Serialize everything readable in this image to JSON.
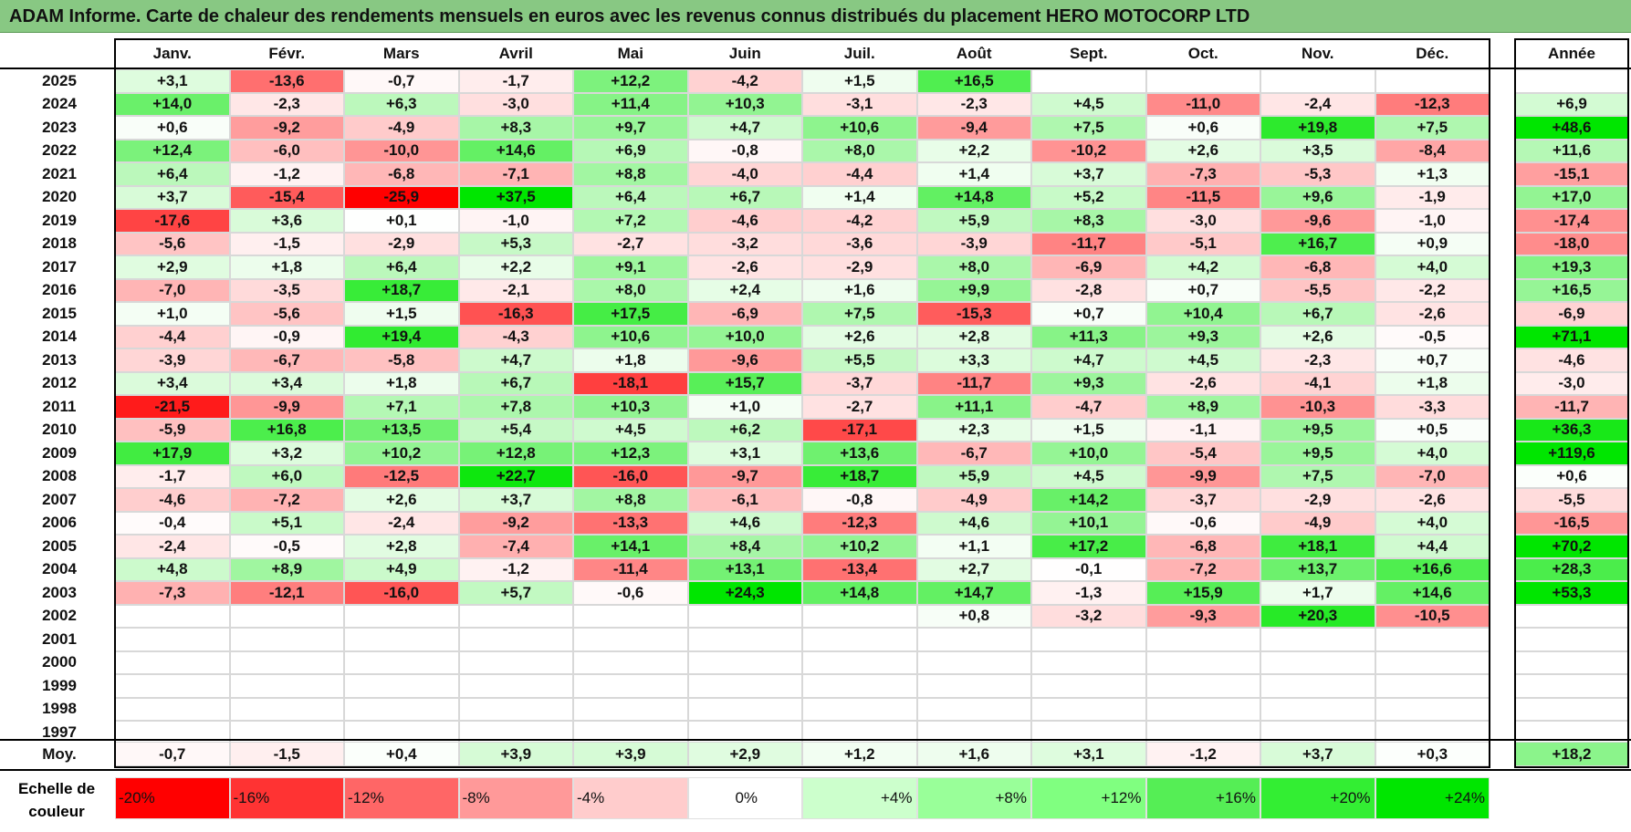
{
  "title": "ADAM Informe. Carte de chaleur des rendements mensuels en euros avec les revenus connus distribués du placement HERO MOTOCORP LTD",
  "chart_data": {
    "type": "heatmap",
    "title": "ADAM Informe. Carte de chaleur des rendements mensuels en euros avec les revenus connus distribués du placement HERO MOTOCORP LTD",
    "months": [
      "Janv.",
      "Févr.",
      "Mars",
      "Avril",
      "Mai",
      "Juin",
      "Juil.",
      "Août",
      "Sept.",
      "Oct.",
      "Nov.",
      "Déc."
    ],
    "year_header": "Année",
    "rows": [
      {
        "year": "2025",
        "values": [
          "+3,1",
          "-13,6",
          "-0,7",
          "-1,7",
          "+12,2",
          "-4,2",
          "+1,5",
          "+16,5",
          "",
          "",
          "",
          ""
        ],
        "annual": ""
      },
      {
        "year": "2024",
        "values": [
          "+14,0",
          "-2,3",
          "+6,3",
          "-3,0",
          "+11,4",
          "+10,3",
          "-3,1",
          "-2,3",
          "+4,5",
          "-11,0",
          "-2,4",
          "-12,3"
        ],
        "annual": "+6,9"
      },
      {
        "year": "2023",
        "values": [
          "+0,6",
          "-9,2",
          "-4,9",
          "+8,3",
          "+9,7",
          "+4,7",
          "+10,6",
          "-9,4",
          "+7,5",
          "+0,6",
          "+19,8",
          "+7,5"
        ],
        "annual": "+48,6"
      },
      {
        "year": "2022",
        "values": [
          "+12,4",
          "-6,0",
          "-10,0",
          "+14,6",
          "+6,9",
          "-0,8",
          "+8,0",
          "+2,2",
          "-10,2",
          "+2,6",
          "+3,5",
          "-8,4"
        ],
        "annual": "+11,6"
      },
      {
        "year": "2021",
        "values": [
          "+6,4",
          "-1,2",
          "-6,8",
          "-7,1",
          "+8,8",
          "-4,0",
          "-4,4",
          "+1,4",
          "+3,7",
          "-7,3",
          "-5,3",
          "+1,3"
        ],
        "annual": "-15,1"
      },
      {
        "year": "2020",
        "values": [
          "+3,7",
          "-15,4",
          "-25,9",
          "+37,5",
          "+6,4",
          "+6,7",
          "+1,4",
          "+14,8",
          "+5,2",
          "-11,5",
          "+9,6",
          "-1,9"
        ],
        "annual": "+17,0"
      },
      {
        "year": "2019",
        "values": [
          "-17,6",
          "+3,6",
          "+0,1",
          "-1,0",
          "+7,2",
          "-4,6",
          "-4,2",
          "+5,9",
          "+8,3",
          "-3,0",
          "-9,6",
          "-1,0"
        ],
        "annual": "-17,4"
      },
      {
        "year": "2018",
        "values": [
          "-5,6",
          "-1,5",
          "-2,9",
          "+5,3",
          "-2,7",
          "-3,2",
          "-3,6",
          "-3,9",
          "-11,7",
          "-5,1",
          "+16,7",
          "+0,9"
        ],
        "annual": "-18,0"
      },
      {
        "year": "2017",
        "values": [
          "+2,9",
          "+1,8",
          "+6,4",
          "+2,2",
          "+9,1",
          "-2,6",
          "-2,9",
          "+8,0",
          "-6,9",
          "+4,2",
          "-6,8",
          "+4,0"
        ],
        "annual": "+19,3"
      },
      {
        "year": "2016",
        "values": [
          "-7,0",
          "-3,5",
          "+18,7",
          "-2,1",
          "+8,0",
          "+2,4",
          "+1,6",
          "+9,9",
          "-2,8",
          "+0,7",
          "-5,5",
          "-2,2"
        ],
        "annual": "+16,5"
      },
      {
        "year": "2015",
        "values": [
          "+1,0",
          "-5,6",
          "+1,5",
          "-16,3",
          "+17,5",
          "-6,9",
          "+7,5",
          "-15,3",
          "+0,7",
          "+10,4",
          "+6,7",
          "-2,6"
        ],
        "annual": "-6,9"
      },
      {
        "year": "2014",
        "values": [
          "-4,4",
          "-0,9",
          "+19,4",
          "-4,3",
          "+10,6",
          "+10,0",
          "+2,6",
          "+2,8",
          "+11,3",
          "+9,3",
          "+2,6",
          "-0,5"
        ],
        "annual": "+71,1"
      },
      {
        "year": "2013",
        "values": [
          "-3,9",
          "-6,7",
          "-5,8",
          "+4,7",
          "+1,8",
          "-9,6",
          "+5,5",
          "+3,3",
          "+4,7",
          "+4,5",
          "-2,3",
          "+0,7"
        ],
        "annual": "-4,6"
      },
      {
        "year": "2012",
        "values": [
          "+3,4",
          "+3,4",
          "+1,8",
          "+6,7",
          "-18,1",
          "+15,7",
          "-3,7",
          "-11,7",
          "+9,3",
          "-2,6",
          "-4,1",
          "+1,8"
        ],
        "annual": "-3,0"
      },
      {
        "year": "2011",
        "values": [
          "-21,5",
          "-9,9",
          "+7,1",
          "+7,8",
          "+10,3",
          "+1,0",
          "-2,7",
          "+11,1",
          "-4,7",
          "+8,9",
          "-10,3",
          "-3,3"
        ],
        "annual": "-11,7"
      },
      {
        "year": "2010",
        "values": [
          "-5,9",
          "+16,8",
          "+13,5",
          "+5,4",
          "+4,5",
          "+6,2",
          "-17,1",
          "+2,3",
          "+1,5",
          "-1,1",
          "+9,5",
          "+0,5"
        ],
        "annual": "+36,3"
      },
      {
        "year": "2009",
        "values": [
          "+17,9",
          "+3,2",
          "+10,2",
          "+12,8",
          "+12,3",
          "+3,1",
          "+13,6",
          "-6,7",
          "+10,0",
          "-5,4",
          "+9,5",
          "+4,0"
        ],
        "annual": "+119,6"
      },
      {
        "year": "2008",
        "values": [
          "-1,7",
          "+6,0",
          "-12,5",
          "+22,7",
          "-16,0",
          "-9,7",
          "+18,7",
          "+5,9",
          "+4,5",
          "-9,9",
          "+7,5",
          "-7,0"
        ],
        "annual": "+0,6"
      },
      {
        "year": "2007",
        "values": [
          "-4,6",
          "-7,2",
          "+2,6",
          "+3,7",
          "+8,8",
          "-6,1",
          "-0,8",
          "-4,9",
          "+14,2",
          "-3,7",
          "-2,9",
          "-2,6"
        ],
        "annual": "-5,5"
      },
      {
        "year": "2006",
        "values": [
          "-0,4",
          "+5,1",
          "-2,4",
          "-9,2",
          "-13,3",
          "+4,6",
          "-12,3",
          "+4,6",
          "+10,1",
          "-0,6",
          "-4,9",
          "+4,0"
        ],
        "annual": "-16,5"
      },
      {
        "year": "2005",
        "values": [
          "-2,4",
          "-0,5",
          "+2,8",
          "-7,4",
          "+14,1",
          "+8,4",
          "+10,2",
          "+1,1",
          "+17,2",
          "-6,8",
          "+18,1",
          "+4,4"
        ],
        "annual": "+70,2"
      },
      {
        "year": "2004",
        "values": [
          "+4,8",
          "+8,9",
          "+4,9",
          "-1,2",
          "-11,4",
          "+13,1",
          "-13,4",
          "+2,7",
          "-0,1",
          "-7,2",
          "+13,7",
          "+16,6"
        ],
        "annual": "+28,3"
      },
      {
        "year": "2003",
        "values": [
          "-7,3",
          "-12,1",
          "-16,0",
          "+5,7",
          "-0,6",
          "+24,3",
          "+14,8",
          "+14,7",
          "-1,3",
          "+15,9",
          "+1,7",
          "+14,6"
        ],
        "annual": "+53,3"
      },
      {
        "year": "2002",
        "values": [
          "",
          "",
          "",
          "",
          "",
          "",
          "",
          "+0,8",
          "-3,2",
          "-9,3",
          "+20,3",
          "-10,5"
        ],
        "annual": ""
      },
      {
        "year": "2001",
        "values": [
          "",
          "",
          "",
          "",
          "",
          "",
          "",
          "",
          "",
          "",
          "",
          ""
        ],
        "annual": ""
      },
      {
        "year": "2000",
        "values": [
          "",
          "",
          "",
          "",
          "",
          "",
          "",
          "",
          "",
          "",
          "",
          ""
        ],
        "annual": ""
      },
      {
        "year": "1999",
        "values": [
          "",
          "",
          "",
          "",
          "",
          "",
          "",
          "",
          "",
          "",
          "",
          ""
        ],
        "annual": ""
      },
      {
        "year": "1998",
        "values": [
          "",
          "",
          "",
          "",
          "",
          "",
          "",
          "",
          "",
          "",
          "",
          ""
        ],
        "annual": ""
      },
      {
        "year": "1997",
        "values": [
          "",
          "",
          "",
          "",
          "",
          "",
          "",
          "",
          "",
          "",
          "",
          ""
        ],
        "annual": ""
      }
    ],
    "average": {
      "label": "Moy.",
      "values": [
        "-0,7",
        "-1,5",
        "+0,4",
        "+3,9",
        "+3,9",
        "+2,9",
        "+1,2",
        "+1,6",
        "+3,1",
        "-1,2",
        "+3,7",
        "+0,3"
      ],
      "annual": "+18,2"
    },
    "color_scale": {
      "label": "Echelle de couleur",
      "steps": [
        {
          "label": "-20%",
          "value": -20,
          "color": "#ff0000"
        },
        {
          "label": "-16%",
          "value": -16,
          "color": "#ff3333"
        },
        {
          "label": "-12%",
          "value": -12,
          "color": "#ff6666"
        },
        {
          "label": "-8%",
          "value": -8,
          "color": "#ff9999"
        },
        {
          "label": "-4%",
          "value": -4,
          "color": "#ffcccc"
        },
        {
          "label": "0%",
          "value": 0,
          "color": "#ffffff"
        },
        {
          "label": "+4%",
          "value": 4,
          "color": "#ccffcc"
        },
        {
          "label": "+8%",
          "value": 8,
          "color": "#99ff99"
        },
        {
          "label": "+12%",
          "value": 12,
          "color": "#80ff80"
        },
        {
          "label": "+16%",
          "value": 16,
          "color": "#55ee55"
        },
        {
          "label": "+20%",
          "value": 20,
          "color": "#33ee33"
        },
        {
          "label": "+24%",
          "value": 24,
          "color": "#00e600"
        }
      ]
    }
  }
}
